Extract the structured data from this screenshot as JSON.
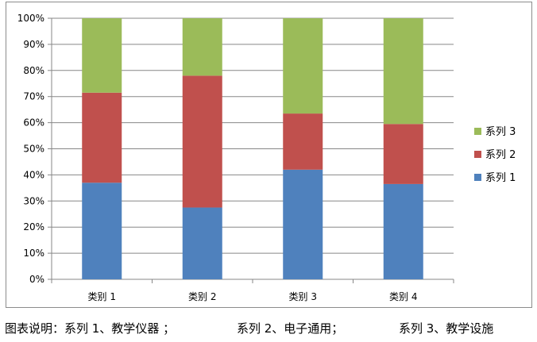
{
  "chart_data": {
    "type": "bar",
    "stacked": "percent",
    "categories": [
      "类别 1",
      "类别 2",
      "类别 3",
      "类别 4"
    ],
    "series": [
      {
        "name": "系列 1",
        "values": [
          37,
          27.5,
          42,
          36.5
        ],
        "color": "#4f81bd"
      },
      {
        "name": "系列 2",
        "values": [
          34.5,
          50.5,
          21.5,
          23
        ],
        "color": "#c0504d"
      },
      {
        "name": "系列 3",
        "values": [
          28.5,
          22,
          36.5,
          40.5
        ],
        "color": "#9bbb59"
      }
    ],
    "yticks": [
      "0%",
      "10%",
      "20%",
      "30%",
      "40%",
      "50%",
      "60%",
      "70%",
      "80%",
      "90%",
      "100%"
    ],
    "ylim": [
      0,
      100
    ],
    "grid": true,
    "legend": "right"
  },
  "caption": {
    "part1": "图表说明：系列 1、教学仪器 ；",
    "part2": "系列 2、电子通用；",
    "part3": "系列 3、教学设施"
  }
}
